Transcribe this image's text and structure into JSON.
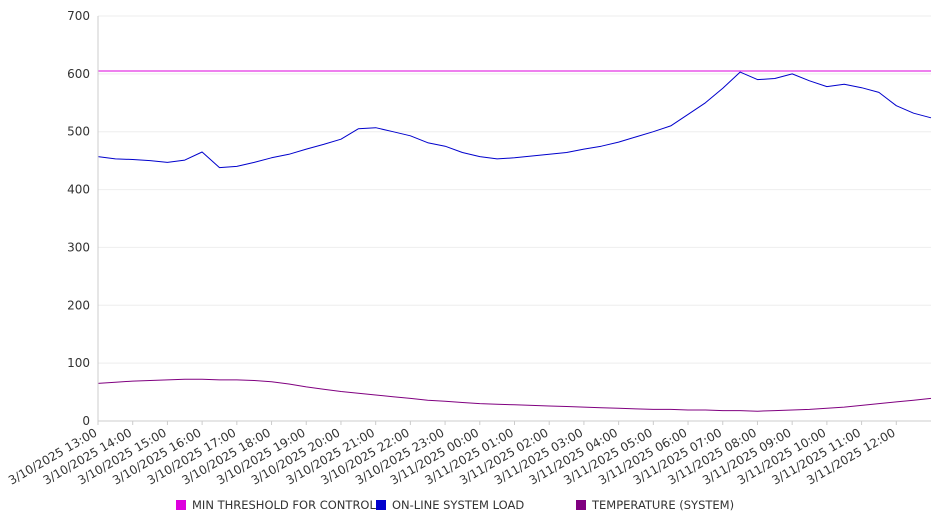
{
  "chart_data": {
    "type": "line",
    "ylim": [
      0,
      700
    ],
    "y_ticks": [
      "0",
      "100",
      "200",
      "300",
      "400",
      "500",
      "600",
      "700"
    ],
    "x_tick_labels": [
      "3/10/2025 13:00",
      "3/10/2025 14:00",
      "3/10/2025 15:00",
      "3/10/2025 16:00",
      "3/10/2025 17:00",
      "3/10/2025 18:00",
      "3/10/2025 19:00",
      "3/10/2025 20:00",
      "3/10/2025 21:00",
      "3/10/2025 22:00",
      "3/10/2025 23:00",
      "3/11/2025 00:00",
      "3/11/2025 01:00",
      "3/11/2025 02:00",
      "3/11/2025 03:00",
      "3/11/2025 04:00",
      "3/11/2025 05:00",
      "3/11/2025 06:00",
      "3/11/2025 07:00",
      "3/11/2025 08:00",
      "3/11/2025 09:00",
      "3/11/2025 10:00",
      "3/11/2025 11:00",
      "3/11/2025 12:00"
    ],
    "x": [
      "3/10/2025 13:00",
      "3/10/2025 13:30",
      "3/10/2025 14:00",
      "3/10/2025 14:30",
      "3/10/2025 15:00",
      "3/10/2025 15:30",
      "3/10/2025 16:00",
      "3/10/2025 16:30",
      "3/10/2025 17:00",
      "3/10/2025 17:30",
      "3/10/2025 18:00",
      "3/10/2025 18:30",
      "3/10/2025 19:00",
      "3/10/2025 19:30",
      "3/10/2025 20:00",
      "3/10/2025 20:30",
      "3/10/2025 21:00",
      "3/10/2025 21:30",
      "3/10/2025 22:00",
      "3/10/2025 22:30",
      "3/10/2025 23:00",
      "3/10/2025 23:30",
      "3/11/2025 00:00",
      "3/11/2025 00:30",
      "3/11/2025 01:00",
      "3/11/2025 01:30",
      "3/11/2025 02:00",
      "3/11/2025 02:30",
      "3/11/2025 03:00",
      "3/11/2025 03:30",
      "3/11/2025 04:00",
      "3/11/2025 04:30",
      "3/11/2025 05:00",
      "3/11/2025 05:30",
      "3/11/2025 06:00",
      "3/11/2025 06:30",
      "3/11/2025 07:00",
      "3/11/2025 07:30",
      "3/11/2025 08:00",
      "3/11/2025 08:30",
      "3/11/2025 09:00",
      "3/11/2025 09:30",
      "3/11/2025 10:00",
      "3/11/2025 10:30",
      "3/11/2025 11:00",
      "3/11/2025 11:30",
      "3/11/2025 12:00",
      "3/11/2025 12:30",
      "3/11/2025 13:00"
    ],
    "series": [
      {
        "name": "MIN THRESHOLD FOR CONTROL",
        "color": "#dd00dd",
        "values": [
          605,
          605,
          605,
          605,
          605,
          605,
          605,
          605,
          605,
          605,
          605,
          605,
          605,
          605,
          605,
          605,
          605,
          605,
          605,
          605,
          605,
          605,
          605,
          605,
          605,
          605,
          605,
          605,
          605,
          605,
          605,
          605,
          605,
          605,
          605,
          605,
          605,
          605,
          605,
          605,
          605,
          605,
          605,
          605,
          605,
          605,
          605,
          605,
          605
        ]
      },
      {
        "name": "ON-LINE SYSTEM LOAD",
        "color": "#0000cc",
        "values": [
          457,
          453,
          452,
          450,
          447,
          451,
          465,
          438,
          440,
          447,
          455,
          461,
          470,
          478,
          487,
          505,
          507,
          500,
          493,
          481,
          475,
          464,
          457,
          453,
          455,
          458,
          461,
          464,
          470,
          475,
          482,
          491,
          500,
          510,
          530,
          550,
          575,
          603,
          590,
          592,
          600,
          588,
          578,
          582,
          576,
          568,
          545,
          532,
          524
        ]
      },
      {
        "name": "TEMPERATURE (SYSTEM)",
        "color": "#800080",
        "values": [
          65,
          67,
          69,
          70,
          71,
          72,
          72,
          71,
          71,
          70,
          68,
          64,
          59,
          55,
          51,
          48,
          45,
          42,
          39,
          36,
          34,
          32,
          30,
          29,
          28,
          27,
          26,
          25,
          24,
          23,
          22,
          21,
          20,
          20,
          19,
          19,
          18,
          18,
          17,
          18,
          19,
          20,
          22,
          24,
          27,
          30,
          33,
          36,
          39
        ]
      }
    ],
    "grid": true,
    "legend_position": "bottom",
    "colors": {
      "axis": "#cccccc",
      "grid": "#eeeeee",
      "text": "#333333"
    }
  }
}
